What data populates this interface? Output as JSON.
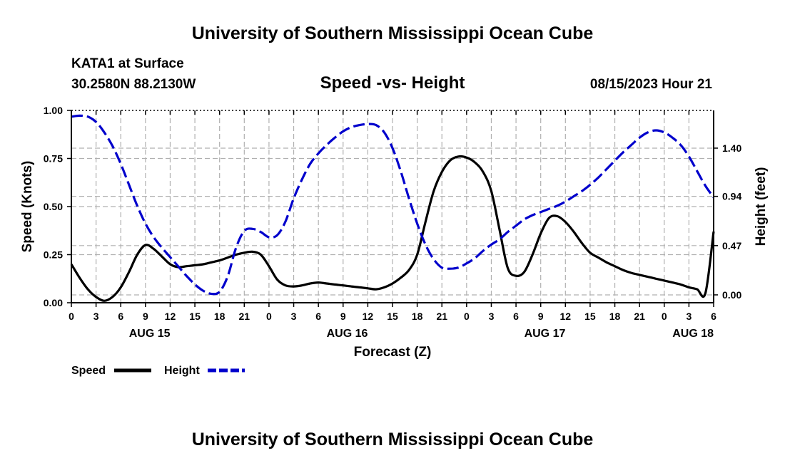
{
  "header": {
    "title": "University of Southern Mississippi Ocean Cube",
    "station": "KATA1 at Surface",
    "coords": "30.2580N  88.2130W",
    "chart_title": "Speed -vs- Height",
    "timestamp": "08/15/2023 Hour 21"
  },
  "footer": {
    "title": "University of Southern Mississippi Ocean Cube"
  },
  "legend": {
    "speed_label": "Speed",
    "height_label": "Height"
  },
  "colors": {
    "speed": "#000000",
    "height": "#0000cc",
    "grid": "#b0b0b0"
  },
  "chart_data": {
    "type": "line",
    "title": "Speed -vs- Height",
    "xlabel": "Forecast (Z)",
    "ylabel": "Speed (Knots)",
    "y2label": "Height (feet)",
    "xlim": [
      0,
      78
    ],
    "ylim": [
      0,
      1.0
    ],
    "y2lim": [
      -0.075,
      1.76
    ],
    "x_tick_labels": [
      "0",
      "3",
      "6",
      "9",
      "12",
      "15",
      "18",
      "21",
      "0",
      "3",
      "6",
      "9",
      "12",
      "15",
      "18",
      "21",
      "0",
      "3",
      "6",
      "9",
      "12",
      "15",
      "18",
      "21",
      "0",
      "3",
      "6"
    ],
    "y_ticks": [
      "0.00",
      "0.25",
      "0.50",
      "0.75",
      "1.00"
    ],
    "y2_ticks": [
      "0.00",
      "0.47",
      "0.94",
      "1.40"
    ],
    "date_labels": [
      {
        "label": "AUG 15",
        "hour": 9.5
      },
      {
        "label": "AUG 16",
        "hour": 33.5
      },
      {
        "label": "AUG 17",
        "hour": 57.5
      },
      {
        "label": "AUG 18",
        "hour": 75.5
      }
    ],
    "series": [
      {
        "name": "Speed",
        "axis": "left",
        "style": "solid",
        "x": [
          0,
          1,
          2,
          3,
          4,
          5,
          6,
          7,
          8,
          9,
          10,
          11,
          12,
          13,
          14,
          15,
          16,
          17,
          18,
          19,
          20,
          21,
          22,
          23,
          24,
          25,
          26,
          27,
          28,
          29,
          30,
          31,
          32,
          33,
          34,
          35,
          36,
          37,
          38,
          39,
          40,
          41,
          42,
          43,
          44,
          45,
          46,
          47,
          48,
          49,
          50,
          51,
          52,
          53,
          54,
          55,
          56,
          57,
          58,
          59,
          60,
          61,
          62,
          63,
          64,
          65,
          66,
          67,
          68,
          69,
          70,
          71,
          72,
          73,
          74,
          75,
          76,
          77,
          78
        ],
        "values": [
          0.2,
          0.13,
          0.07,
          0.03,
          0.01,
          0.03,
          0.08,
          0.16,
          0.25,
          0.3,
          0.28,
          0.24,
          0.2,
          0.185,
          0.19,
          0.195,
          0.2,
          0.21,
          0.22,
          0.235,
          0.25,
          0.26,
          0.265,
          0.25,
          0.19,
          0.12,
          0.09,
          0.085,
          0.09,
          0.1,
          0.105,
          0.1,
          0.095,
          0.09,
          0.085,
          0.08,
          0.075,
          0.07,
          0.08,
          0.1,
          0.13,
          0.17,
          0.25,
          0.42,
          0.58,
          0.68,
          0.74,
          0.76,
          0.755,
          0.73,
          0.68,
          0.58,
          0.38,
          0.18,
          0.14,
          0.16,
          0.25,
          0.36,
          0.44,
          0.45,
          0.42,
          0.37,
          0.31,
          0.26,
          0.235,
          0.21,
          0.19,
          0.17,
          0.155,
          0.145,
          0.135,
          0.125,
          0.115,
          0.105,
          0.095,
          0.08,
          0.07,
          0.05,
          0.37
        ]
      },
      {
        "name": "Height",
        "axis": "right",
        "style": "dashed",
        "x": [
          0,
          1,
          2,
          3,
          4,
          5,
          6,
          7,
          8,
          9,
          10,
          11,
          12,
          13,
          14,
          15,
          16,
          17,
          18,
          19,
          20,
          21,
          22,
          23,
          24,
          25,
          26,
          27,
          28,
          29,
          30,
          31,
          32,
          33,
          34,
          35,
          36,
          37,
          38,
          39,
          40,
          41,
          42,
          43,
          44,
          45,
          46,
          47,
          48,
          49,
          50,
          51,
          52,
          53,
          54,
          55,
          56,
          57,
          58,
          59,
          60,
          61,
          62,
          63,
          64,
          65,
          66,
          67,
          68,
          69,
          70,
          71,
          72,
          73,
          74,
          75,
          76,
          77,
          78
        ],
        "values": [
          1.7,
          1.71,
          1.7,
          1.65,
          1.55,
          1.42,
          1.25,
          1.05,
          0.85,
          0.68,
          0.55,
          0.45,
          0.36,
          0.27,
          0.18,
          0.1,
          0.04,
          0.01,
          0.03,
          0.18,
          0.45,
          0.61,
          0.63,
          0.6,
          0.55,
          0.57,
          0.7,
          0.92,
          1.1,
          1.25,
          1.35,
          1.43,
          1.5,
          1.56,
          1.6,
          1.62,
          1.63,
          1.62,
          1.55,
          1.4,
          1.18,
          0.92,
          0.68,
          0.48,
          0.34,
          0.26,
          0.25,
          0.26,
          0.3,
          0.35,
          0.42,
          0.48,
          0.53,
          0.6,
          0.66,
          0.72,
          0.76,
          0.79,
          0.82,
          0.85,
          0.89,
          0.94,
          0.99,
          1.05,
          1.12,
          1.2,
          1.28,
          1.36,
          1.43,
          1.5,
          1.55,
          1.57,
          1.55,
          1.5,
          1.43,
          1.32,
          1.18,
          1.04,
          0.93
        ]
      }
    ]
  }
}
